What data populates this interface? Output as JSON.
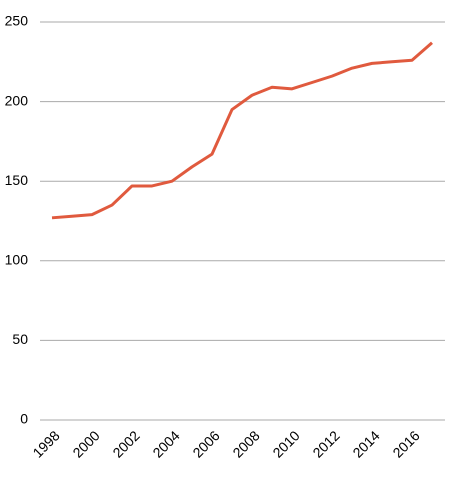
{
  "chart_data": {
    "type": "line",
    "categories": [
      "1998",
      null,
      "2000",
      null,
      "2002",
      null,
      "2004",
      null,
      "2006",
      null,
      "2008",
      null,
      "2010",
      null,
      "2012",
      null,
      "2014",
      null,
      "2016",
      null
    ],
    "series": [
      {
        "color": "#e05a3e",
        "values": [
          127,
          128,
          129,
          135,
          147,
          147,
          150,
          159,
          167,
          195,
          204,
          209,
          208,
          212,
          216,
          221,
          224,
          225,
          226,
          237
        ]
      }
    ],
    "ylim": [
      0,
      250
    ],
    "yticks": [
      0,
      50,
      100,
      150,
      200,
      250
    ],
    "grid": true
  }
}
